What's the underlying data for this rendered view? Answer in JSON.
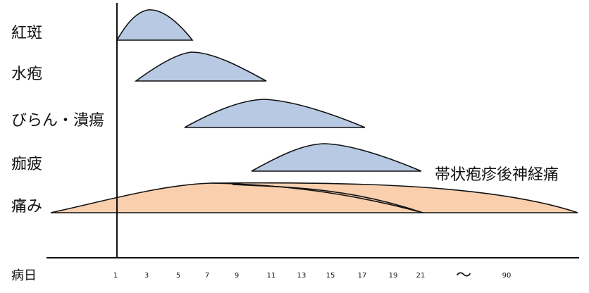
{
  "rows": {
    "erythema": "紅斑",
    "vesicle": "水疱",
    "erosion": "びらん・潰瘍",
    "crust": "痂疲",
    "pain": "痛み"
  },
  "phn_label": "帯状疱疹後神経痛",
  "axis": {
    "name": "病日",
    "ticks": [
      "1",
      "3",
      "5",
      "7",
      "9",
      "11",
      "13",
      "15",
      "17",
      "19",
      "21"
    ],
    "break_symbol": "～",
    "far_tick": "90"
  },
  "colors": {
    "skin_symptom_fill": "#b7c9e3",
    "pain_fill": "#f9cfae",
    "outline": "#111111"
  }
}
